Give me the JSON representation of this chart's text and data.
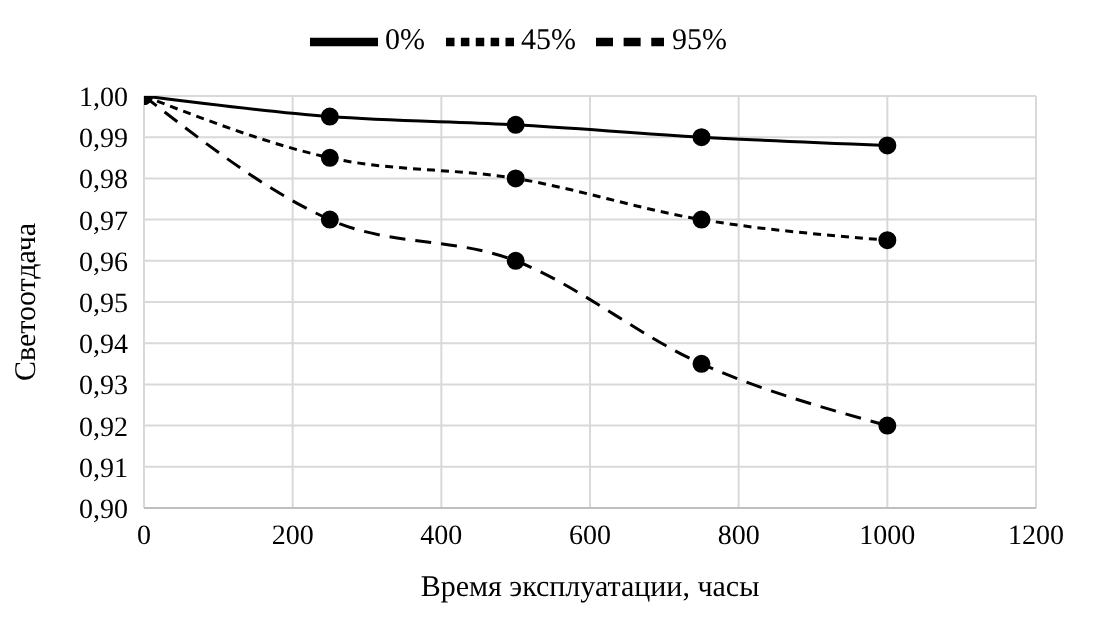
{
  "chart_data": {
    "type": "line",
    "xlabel": "Время эксплуатации, часы",
    "ylabel": "Светоотдача",
    "x": [
      0,
      250,
      500,
      750,
      1000
    ],
    "series": [
      {
        "name": "0%",
        "color": "#000000",
        "line_style": "solid",
        "values": [
          1.0,
          0.995,
          0.993,
          0.99,
          0.988
        ]
      },
      {
        "name": "45%",
        "color": "#000000",
        "line_style": "dotted",
        "values": [
          1.0,
          0.985,
          0.98,
          0.97,
          0.965
        ]
      },
      {
        "name": "95%",
        "color": "#000000",
        "line_style": "dashed",
        "values": [
          1.0,
          0.97,
          0.96,
          0.935,
          0.92
        ]
      }
    ],
    "xlim": [
      0,
      1200
    ],
    "xticks": [
      0,
      200,
      400,
      600,
      800,
      1000,
      1200
    ],
    "ylim": [
      0.9,
      1.0
    ],
    "yticks": [
      {
        "value": 0.9,
        "label": "0,90"
      },
      {
        "value": 0.91,
        "label": "0,91"
      },
      {
        "value": 0.92,
        "label": "0,92"
      },
      {
        "value": 0.93,
        "label": "0,93"
      },
      {
        "value": 0.94,
        "label": "0,94"
      },
      {
        "value": 0.95,
        "label": "0,95"
      },
      {
        "value": 0.96,
        "label": "0,96"
      },
      {
        "value": 0.97,
        "label": "0,97"
      },
      {
        "value": 0.98,
        "label": "0,98"
      },
      {
        "value": 0.99,
        "label": "0,99"
      },
      {
        "value": 1.0,
        "label": "1,00"
      }
    ],
    "grid": true,
    "legend": "top",
    "marker": "circle"
  }
}
